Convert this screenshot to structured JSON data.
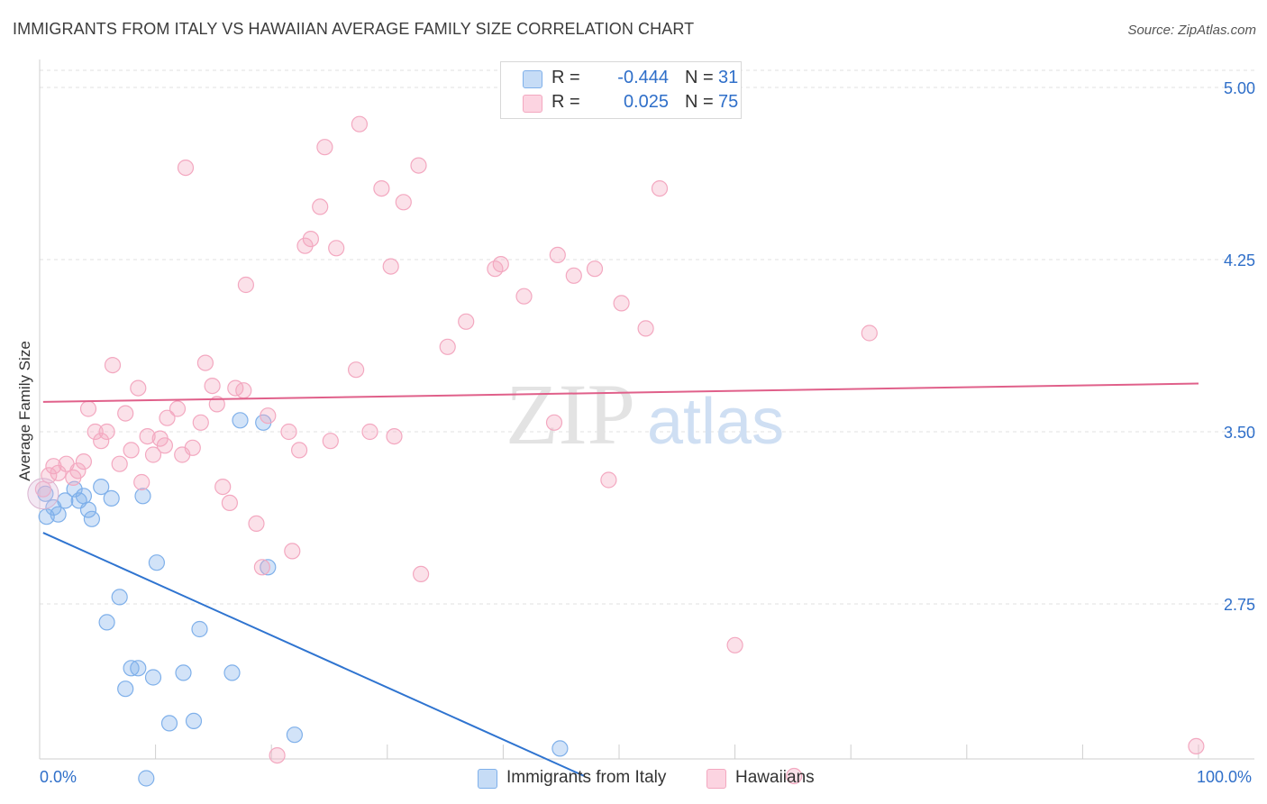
{
  "header": {
    "title": "IMMIGRANTS FROM ITALY VS HAWAIIAN AVERAGE FAMILY SIZE CORRELATION CHART",
    "source": "Source: ZipAtlas.com"
  },
  "legend": {
    "rows": [
      {
        "r_label": "R =",
        "r_value": "-0.444",
        "n_label": "N =",
        "n_value": "31",
        "color": "#7fb0ea"
      },
      {
        "r_label": "R =",
        "r_value": "0.025",
        "n_label": "N =",
        "n_value": "75",
        "color": "#f3a8c0"
      }
    ]
  },
  "bottom_legend": [
    {
      "label": "Immigrants from Italy",
      "color": "#7fb0ea"
    },
    {
      "label": "Hawaiians",
      "color": "#f3a8c0"
    }
  ],
  "watermark": {
    "zip": "ZIP",
    "atlas": "atlas"
  },
  "chart_data": {
    "type": "scatter",
    "title": "IMMIGRANTS FROM ITALY VS HAWAIIAN AVERAGE FAMILY SIZE CORRELATION CHART",
    "xlabel": "",
    "ylabel": "Average Family Size",
    "xlim": [
      0,
      100
    ],
    "ylim": [
      2.0,
      5.1
    ],
    "x_tick_labels": [
      "0.0%",
      "100.0%"
    ],
    "y_ticks": [
      2.75,
      3.5,
      4.25,
      5.0
    ],
    "y_tick_labels": [
      "2.75",
      "3.50",
      "4.25",
      "5.00"
    ],
    "grid": "horizontal dashed",
    "legend_position": "top-center",
    "series": [
      {
        "name": "Immigrants from Italy",
        "color": "#7fb0ea",
        "line_color": "#2f74d0",
        "trend": {
          "x0": 0.3,
          "y0": 3.06,
          "x1": 47,
          "y1": 2.0
        },
        "points": [
          [
            0.5,
            3.23
          ],
          [
            0.6,
            3.13
          ],
          [
            1.2,
            3.17
          ],
          [
            1.6,
            3.14
          ],
          [
            2.2,
            3.2
          ],
          [
            3.0,
            3.25
          ],
          [
            3.4,
            3.2
          ],
          [
            3.8,
            3.22
          ],
          [
            4.2,
            3.16
          ],
          [
            4.5,
            3.12
          ],
          [
            5.3,
            3.26
          ],
          [
            6.2,
            3.21
          ],
          [
            6.9,
            2.78
          ],
          [
            5.8,
            2.67
          ],
          [
            8.9,
            3.22
          ],
          [
            10.1,
            2.93
          ],
          [
            13.8,
            2.64
          ],
          [
            7.4,
            2.38
          ],
          [
            8.5,
            2.47
          ],
          [
            7.9,
            2.47
          ],
          [
            9.8,
            2.43
          ],
          [
            12.4,
            2.45
          ],
          [
            16.6,
            2.45
          ],
          [
            11.2,
            2.23
          ],
          [
            13.3,
            2.24
          ],
          [
            17.3,
            3.55
          ],
          [
            19.3,
            3.54
          ],
          [
            19.7,
            2.91
          ],
          [
            22.0,
            2.18
          ],
          [
            9.2,
            1.99
          ],
          [
            44.9,
            2.12
          ]
        ]
      },
      {
        "name": "Hawaiians",
        "color": "#f3a8c0",
        "line_color": "#e0608a",
        "trend": {
          "x0": 0.3,
          "y0": 3.63,
          "x1": 100,
          "y1": 3.71
        },
        "points": [
          [
            0.3,
            3.25
          ],
          [
            0.8,
            3.31
          ],
          [
            1.2,
            3.35
          ],
          [
            1.6,
            3.32
          ],
          [
            2.3,
            3.36
          ],
          [
            2.9,
            3.3
          ],
          [
            3.3,
            3.33
          ],
          [
            3.8,
            3.37
          ],
          [
            4.2,
            3.6
          ],
          [
            4.8,
            3.5
          ],
          [
            5.3,
            3.46
          ],
          [
            5.8,
            3.5
          ],
          [
            6.3,
            3.79
          ],
          [
            6.9,
            3.36
          ],
          [
            7.4,
            3.58
          ],
          [
            7.9,
            3.42
          ],
          [
            8.5,
            3.69
          ],
          [
            8.8,
            3.28
          ],
          [
            9.3,
            3.48
          ],
          [
            9.8,
            3.4
          ],
          [
            10.4,
            3.47
          ],
          [
            10.8,
            3.44
          ],
          [
            11.0,
            3.56
          ],
          [
            11.9,
            3.6
          ],
          [
            12.3,
            3.4
          ],
          [
            12.6,
            4.65
          ],
          [
            13.2,
            3.43
          ],
          [
            13.9,
            3.54
          ],
          [
            14.3,
            3.8
          ],
          [
            14.9,
            3.7
          ],
          [
            15.3,
            3.62
          ],
          [
            15.8,
            3.26
          ],
          [
            16.4,
            3.19
          ],
          [
            16.9,
            3.69
          ],
          [
            17.6,
            3.68
          ],
          [
            17.8,
            4.14
          ],
          [
            18.7,
            3.1
          ],
          [
            19.2,
            2.91
          ],
          [
            19.7,
            3.57
          ],
          [
            20.5,
            2.09
          ],
          [
            21.5,
            3.5
          ],
          [
            21.8,
            2.98
          ],
          [
            22.4,
            3.42
          ],
          [
            22.9,
            4.31
          ],
          [
            23.4,
            4.34
          ],
          [
            24.2,
            4.48
          ],
          [
            24.6,
            4.74
          ],
          [
            25.1,
            3.46
          ],
          [
            25.6,
            4.3
          ],
          [
            27.3,
            3.77
          ],
          [
            27.6,
            4.84
          ],
          [
            28.5,
            3.5
          ],
          [
            29.5,
            4.56
          ],
          [
            30.3,
            4.22
          ],
          [
            30.6,
            3.48
          ],
          [
            31.4,
            4.5
          ],
          [
            32.9,
            2.88
          ],
          [
            32.7,
            4.66
          ],
          [
            35.2,
            3.87
          ],
          [
            36.8,
            3.98
          ],
          [
            39.3,
            4.21
          ],
          [
            39.8,
            4.23
          ],
          [
            41.8,
            4.09
          ],
          [
            44.4,
            3.54
          ],
          [
            44.7,
            4.27
          ],
          [
            46.1,
            4.18
          ],
          [
            47.9,
            4.21
          ],
          [
            49.1,
            3.29
          ],
          [
            50.2,
            4.06
          ],
          [
            52.3,
            3.95
          ],
          [
            53.5,
            4.56
          ],
          [
            60.0,
            2.57
          ],
          [
            65.1,
            2.0
          ],
          [
            71.6,
            3.93
          ],
          [
            99.8,
            2.13
          ]
        ]
      }
    ]
  }
}
